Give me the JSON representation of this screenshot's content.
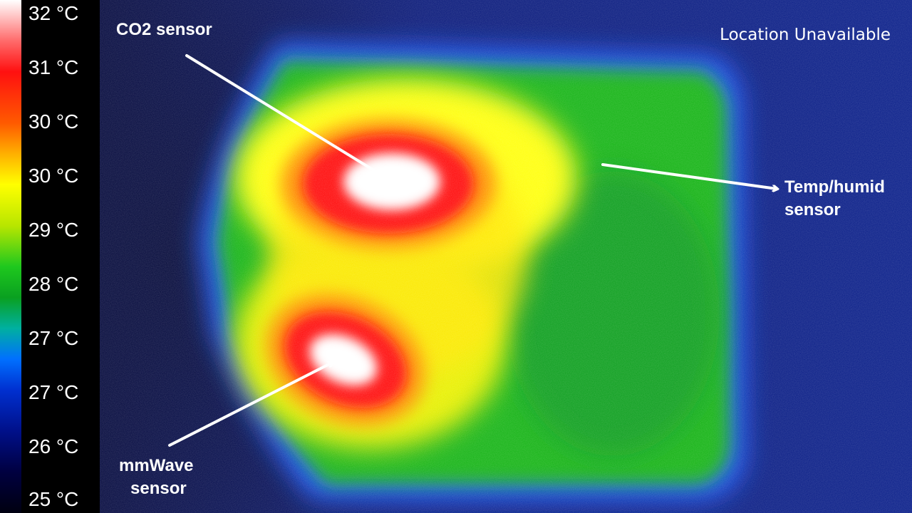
{
  "colors": {
    "background": "#0a1a7a",
    "cool_edge": "#1a5cff",
    "mid": "#18b418",
    "warm": "#ffff00",
    "hot": "#ff1010",
    "hottest": "#ffffff",
    "label_text": "#ffffff"
  },
  "scale": {
    "labels": [
      "32 °C",
      "31 °C",
      "30 °C",
      "30 °C",
      "29 °C",
      "28 °C",
      "27 °C",
      "27 °C",
      "26 °C",
      "25 °C"
    ]
  },
  "annotations": {
    "co2": "CO2 sensor",
    "temp_line1": "Temp/humid",
    "temp_line2": "sensor",
    "mmwave_line1": "mmWave",
    "mmwave_line2": "sensor"
  },
  "status": {
    "location": "Location Unavailable"
  }
}
